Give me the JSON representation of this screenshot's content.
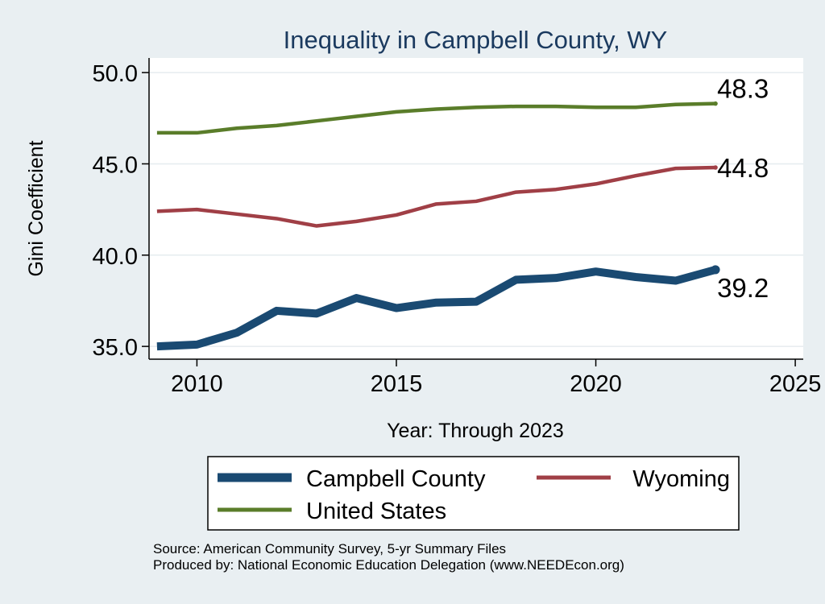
{
  "chart_data": {
    "type": "line",
    "title": "Inequality in Campbell County, WY",
    "xlabel": "Year: Through 2023",
    "ylabel": "Gini Coefficient",
    "xlim": [
      2008.8,
      2025.2
    ],
    "ylim": [
      34.3,
      50.8
    ],
    "x_ticks": [
      2010,
      2015,
      2020,
      2025
    ],
    "y_ticks": [
      35.0,
      40.0,
      45.0,
      50.0
    ],
    "x": [
      2009,
      2010,
      2011,
      2012,
      2013,
      2014,
      2015,
      2016,
      2017,
      2018,
      2019,
      2020,
      2021,
      2022,
      2023
    ],
    "series": [
      {
        "name": "United States",
        "color": "#5a7d2a",
        "values": [
          46.7,
          46.7,
          46.95,
          47.1,
          47.35,
          47.6,
          47.85,
          48.0,
          48.1,
          48.15,
          48.15,
          48.1,
          48.1,
          48.25,
          48.3
        ],
        "end_label": "48.3",
        "end_label_position": "above"
      },
      {
        "name": "Wyoming",
        "color": "#a03f46",
        "values": [
          42.4,
          42.5,
          42.25,
          42.0,
          41.6,
          41.85,
          42.2,
          42.8,
          42.95,
          43.45,
          43.6,
          43.9,
          44.35,
          44.75,
          44.8
        ],
        "end_label": "44.8",
        "end_label_position": "right"
      },
      {
        "name": "Campbell County",
        "color": "#1a4a72",
        "values": [
          35.0,
          35.1,
          35.75,
          36.95,
          36.8,
          37.65,
          37.1,
          37.4,
          37.45,
          38.65,
          38.75,
          39.1,
          38.8,
          38.6,
          39.2
        ],
        "end_label": "39.2",
        "end_label_position": "below"
      }
    ],
    "grid": true,
    "legend_position": "bottom",
    "legend_entries": [
      "Campbell County",
      "Wyoming",
      "United States"
    ]
  },
  "source_note": "Source: American Community Survey, 5-yr Summary Files",
  "producer_note": "Produced by: National Economic Education Delegation (www.NEEDEcon.org)"
}
